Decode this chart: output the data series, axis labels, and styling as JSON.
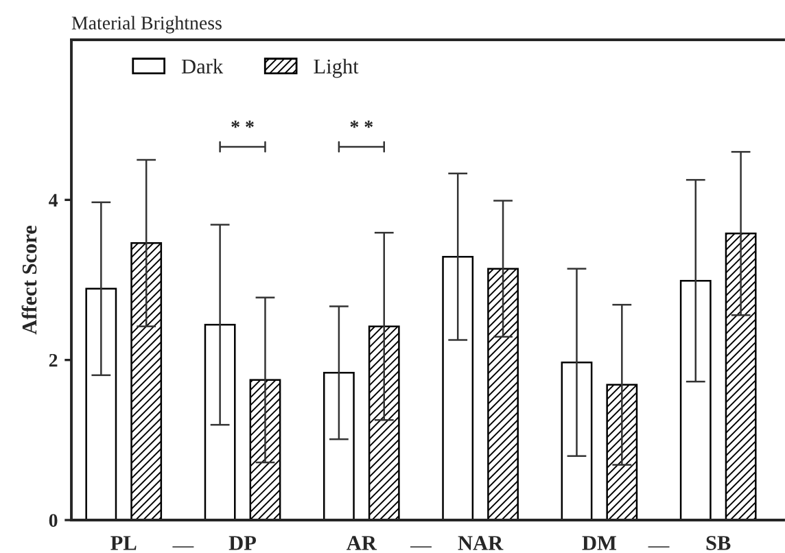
{
  "chart_data": {
    "type": "bar",
    "title": "Material Brightness",
    "ylabel": "Affect Score",
    "categories": [
      "PL",
      "DP",
      "AR",
      "NAR",
      "DM",
      "SB"
    ],
    "series": [
      {
        "name": "Dark",
        "color": "#ffffff",
        "values": [
          2.89,
          2.44,
          1.84,
          3.29,
          1.97,
          2.99
        ],
        "errors": [
          1.08,
          1.25,
          0.83,
          1.04,
          1.17,
          1.26
        ]
      },
      {
        "name": "Light",
        "color": "#000000",
        "values": [
          3.46,
          1.75,
          2.42,
          3.14,
          1.69,
          3.58
        ],
        "errors": [
          1.04,
          1.03,
          1.17,
          0.85,
          1.0,
          1.02
        ]
      }
    ],
    "ylim": [
      0,
      6
    ],
    "yticks": [
      0,
      2,
      4
    ],
    "grid": false,
    "legend": "top left",
    "annotations": [
      "* *",
      "* *",
      "—",
      "—",
      "—"
    ]
  }
}
